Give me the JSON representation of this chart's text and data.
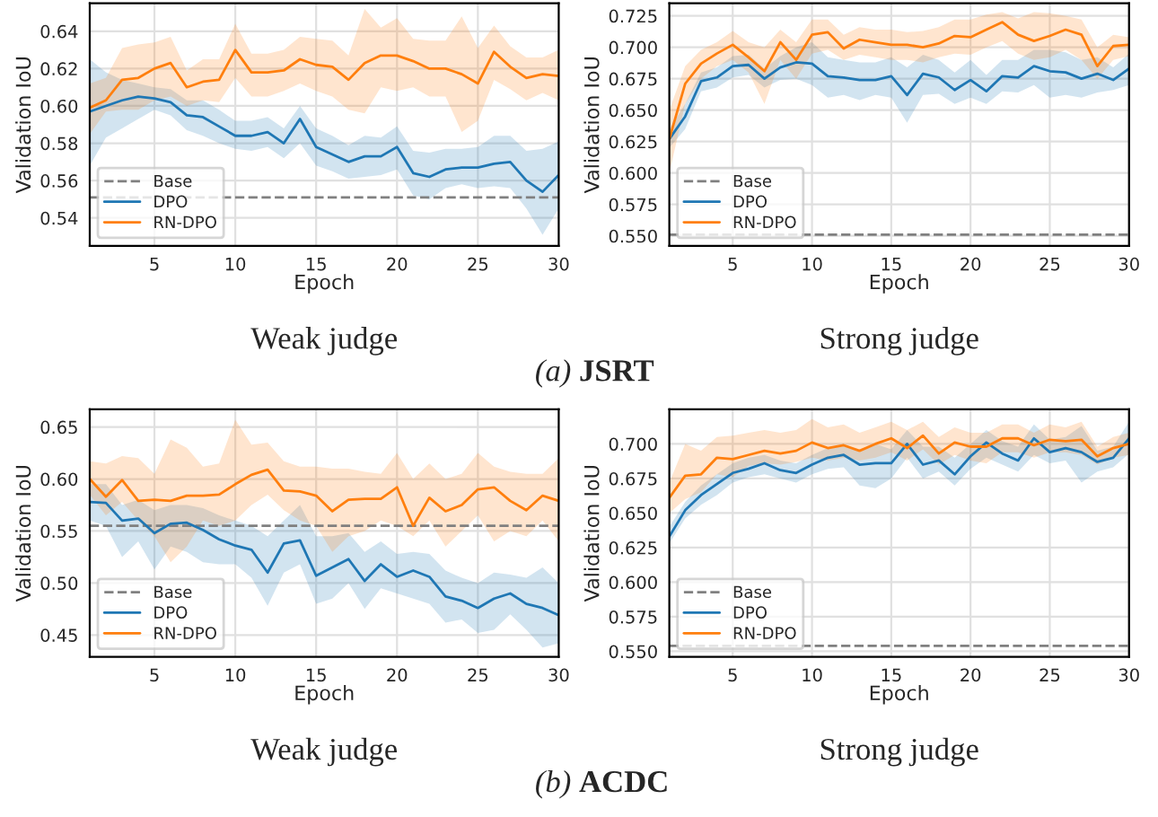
{
  "chart_data": [
    {
      "type": "line",
      "xlabel": "Epoch",
      "ylabel": "Validation IoU",
      "x": [
        1,
        2,
        3,
        4,
        5,
        6,
        7,
        8,
        9,
        10,
        11,
        12,
        13,
        14,
        15,
        16,
        17,
        18,
        19,
        20,
        21,
        22,
        23,
        24,
        25,
        26,
        27,
        28,
        29,
        30
      ],
      "xlim": [
        1,
        30
      ],
      "xticks": [
        5,
        10,
        15,
        20,
        25,
        30
      ],
      "ylim": [
        0.525,
        0.655
      ],
      "yticks": [
        0.54,
        0.56,
        0.58,
        {
          "value": 0.6,
          "label": "0.60"
        },
        0.62,
        0.64
      ],
      "grid": true,
      "legend": "lower left",
      "annotations": [
        "Weak judge",
        "(a) JSRT"
      ],
      "ref_lines": [
        {
          "axis": "y",
          "value": 0.551,
          "label": "Base",
          "color": "#808080",
          "line_style": "dashed"
        }
      ],
      "series": [
        {
          "name": "DPO",
          "color": "#1f77b4",
          "values": [
            0.597,
            0.6,
            0.603,
            0.605,
            0.604,
            0.602,
            0.595,
            0.594,
            0.589,
            0.584,
            0.584,
            0.586,
            0.58,
            0.593,
            0.578,
            0.574,
            0.57,
            0.573,
            0.573,
            0.578,
            0.564,
            0.562,
            0.566,
            0.567,
            0.567,
            0.569,
            0.57,
            0.56,
            0.554,
            0.563
          ],
          "lower": [
            0.568,
            0.583,
            0.588,
            0.593,
            0.598,
            0.595,
            0.587,
            0.584,
            0.58,
            0.577,
            0.576,
            0.578,
            0.572,
            0.58,
            0.568,
            0.565,
            0.561,
            0.562,
            0.563,
            0.566,
            0.552,
            0.55,
            0.556,
            0.558,
            0.556,
            0.557,
            0.556,
            0.545,
            0.531,
            0.545
          ],
          "upper": [
            0.625,
            0.618,
            0.614,
            0.612,
            0.61,
            0.609,
            0.603,
            0.603,
            0.598,
            0.592,
            0.592,
            0.594,
            0.588,
            0.6,
            0.588,
            0.584,
            0.579,
            0.584,
            0.583,
            0.589,
            0.576,
            0.575,
            0.577,
            0.577,
            0.578,
            0.584,
            0.584,
            0.576,
            0.577,
            0.581
          ]
        },
        {
          "name": "RN-DPO",
          "color": "#ff7f0e",
          "values": [
            0.599,
            0.603,
            0.614,
            0.615,
            0.62,
            0.623,
            0.61,
            0.613,
            0.614,
            0.63,
            0.618,
            0.618,
            0.619,
            0.625,
            0.622,
            0.621,
            0.614,
            0.623,
            0.627,
            0.627,
            0.624,
            0.62,
            0.62,
            0.617,
            0.612,
            0.629,
            0.621,
            0.615,
            0.617,
            0.616
          ],
          "lower": [
            0.585,
            0.597,
            0.598,
            0.598,
            0.603,
            0.605,
            0.6,
            0.603,
            0.602,
            0.615,
            0.605,
            0.605,
            0.608,
            0.612,
            0.608,
            0.605,
            0.598,
            0.596,
            0.61,
            0.608,
            0.61,
            0.605,
            0.605,
            0.586,
            0.592,
            0.614,
            0.609,
            0.603,
            0.607,
            0.603
          ],
          "upper": [
            0.612,
            0.615,
            0.631,
            0.633,
            0.634,
            0.637,
            0.619,
            0.625,
            0.625,
            0.644,
            0.628,
            0.628,
            0.63,
            0.637,
            0.636,
            0.635,
            0.627,
            0.652,
            0.642,
            0.647,
            0.636,
            0.635,
            0.635,
            0.648,
            0.631,
            0.643,
            0.632,
            0.626,
            0.626,
            0.63
          ]
        }
      ]
    },
    {
      "type": "line",
      "xlabel": "Epoch",
      "ylabel": "Validation IoU",
      "x": [
        1,
        2,
        3,
        4,
        5,
        6,
        7,
        8,
        9,
        10,
        11,
        12,
        13,
        14,
        15,
        16,
        17,
        18,
        19,
        20,
        21,
        22,
        23,
        24,
        25,
        26,
        27,
        28,
        29,
        30
      ],
      "xlim": [
        1,
        30
      ],
      "xticks": [
        5,
        10,
        15,
        20,
        25,
        30
      ],
      "ylim": [
        0.542,
        0.735
      ],
      "yticks": [
        {
          "value": 0.55,
          "label": "0.550"
        },
        0.575,
        {
          "value": 0.6,
          "label": "0.600"
        },
        0.625,
        {
          "value": 0.65,
          "label": "0.650"
        },
        0.675,
        {
          "value": 0.7,
          "label": "0.700"
        },
        0.725
      ],
      "grid": true,
      "legend": "lower left",
      "annotations": [
        "Strong judge"
      ],
      "ref_lines": [
        {
          "axis": "y",
          "value": 0.551,
          "label": "Base",
          "color": "#808080",
          "line_style": "dashed"
        }
      ],
      "series": [
        {
          "name": "DPO",
          "color": "#1f77b4",
          "values": [
            0.627,
            0.645,
            0.673,
            0.676,
            0.685,
            0.686,
            0.675,
            0.684,
            0.688,
            0.687,
            0.677,
            0.676,
            0.674,
            0.674,
            0.677,
            0.662,
            0.679,
            0.676,
            0.666,
            0.674,
            0.665,
            0.677,
            0.676,
            0.685,
            0.681,
            0.68,
            0.675,
            0.679,
            0.674,
            0.683
          ],
          "lower": [
            0.62,
            0.635,
            0.665,
            0.668,
            0.676,
            0.678,
            0.668,
            0.674,
            0.675,
            0.67,
            0.66,
            0.662,
            0.658,
            0.662,
            0.66,
            0.64,
            0.662,
            0.663,
            0.655,
            0.66,
            0.655,
            0.665,
            0.664,
            0.67,
            0.66,
            0.662,
            0.66,
            0.664,
            0.666,
            0.67
          ],
          "upper": [
            0.635,
            0.655,
            0.68,
            0.684,
            0.693,
            0.694,
            0.683,
            0.693,
            0.7,
            0.704,
            0.692,
            0.69,
            0.688,
            0.688,
            0.692,
            0.684,
            0.694,
            0.69,
            0.68,
            0.69,
            0.678,
            0.69,
            0.69,
            0.698,
            0.698,
            0.696,
            0.69,
            0.692,
            0.684,
            0.695
          ]
        },
        {
          "name": "RN-DPO",
          "color": "#ff7f0e",
          "values": [
            0.627,
            0.671,
            0.687,
            0.695,
            0.702,
            0.692,
            0.681,
            0.704,
            0.69,
            0.71,
            0.712,
            0.699,
            0.706,
            0.704,
            0.702,
            0.702,
            0.7,
            0.703,
            0.709,
            0.708,
            0.714,
            0.72,
            0.71,
            0.705,
            0.709,
            0.714,
            0.71,
            0.685,
            0.701,
            0.702
          ],
          "lower": [
            0.6,
            0.655,
            0.675,
            0.685,
            0.69,
            0.68,
            0.655,
            0.69,
            0.675,
            0.695,
            0.698,
            0.69,
            0.694,
            0.692,
            0.69,
            0.69,
            0.688,
            0.692,
            0.695,
            0.694,
            0.7,
            0.705,
            0.695,
            0.69,
            0.692,
            0.698,
            0.69,
            0.675,
            0.69,
            0.693
          ],
          "upper": [
            0.65,
            0.685,
            0.698,
            0.704,
            0.713,
            0.704,
            0.7,
            0.714,
            0.704,
            0.722,
            0.722,
            0.71,
            0.716,
            0.714,
            0.714,
            0.712,
            0.713,
            0.716,
            0.722,
            0.722,
            0.726,
            0.728,
            0.723,
            0.728,
            0.727,
            0.725,
            0.722,
            0.7,
            0.71,
            0.708
          ]
        }
      ]
    },
    {
      "type": "line",
      "xlabel": "Epoch",
      "ylabel": "Validation IoU",
      "x": [
        1,
        2,
        3,
        4,
        5,
        6,
        7,
        8,
        9,
        10,
        11,
        12,
        13,
        14,
        15,
        16,
        17,
        18,
        19,
        20,
        21,
        22,
        23,
        24,
        25,
        26,
        27,
        28,
        29,
        30
      ],
      "xlim": [
        1,
        30
      ],
      "xticks": [
        5,
        10,
        15,
        20,
        25,
        30
      ],
      "ylim": [
        0.429,
        0.667
      ],
      "yticks": [
        0.45,
        {
          "value": 0.5,
          "label": "0.50"
        },
        0.55,
        {
          "value": 0.6,
          "label": "0.60"
        },
        0.65
      ],
      "grid": true,
      "legend": "lower left",
      "annotations": [
        "Weak judge",
        "(b) ACDC"
      ],
      "ref_lines": [
        {
          "axis": "y",
          "value": 0.555,
          "label": "Base",
          "color": "#808080",
          "line_style": "dashed"
        }
      ],
      "series": [
        {
          "name": "DPO",
          "color": "#1f77b4",
          "values": [
            0.578,
            0.577,
            0.56,
            0.562,
            0.548,
            0.557,
            0.558,
            0.551,
            0.542,
            0.536,
            0.532,
            0.51,
            0.538,
            0.541,
            0.507,
            0.515,
            0.523,
            0.502,
            0.518,
            0.506,
            0.512,
            0.506,
            0.487,
            0.483,
            0.476,
            0.485,
            0.49,
            0.48,
            0.476,
            0.469
          ],
          "lower": [
            0.56,
            0.555,
            0.525,
            0.54,
            0.513,
            0.535,
            0.53,
            0.52,
            0.518,
            0.518,
            0.505,
            0.478,
            0.51,
            0.518,
            0.48,
            0.485,
            0.5,
            0.475,
            0.495,
            0.49,
            0.485,
            0.48,
            0.462,
            0.465,
            0.452,
            0.455,
            0.47,
            0.455,
            0.438,
            0.442
          ],
          "upper": [
            0.595,
            0.595,
            0.575,
            0.58,
            0.57,
            0.575,
            0.575,
            0.572,
            0.565,
            0.56,
            0.555,
            0.545,
            0.56,
            0.575,
            0.545,
            0.545,
            0.548,
            0.53,
            0.54,
            0.528,
            0.53,
            0.528,
            0.512,
            0.505,
            0.5,
            0.51,
            0.508,
            0.505,
            0.515,
            0.5
          ]
        },
        {
          "name": "RN-DPO",
          "color": "#ff7f0e",
          "values": [
            0.6,
            0.583,
            0.599,
            0.579,
            0.58,
            0.579,
            0.584,
            0.584,
            0.585,
            0.595,
            0.604,
            0.609,
            0.589,
            0.588,
            0.584,
            0.569,
            0.58,
            0.581,
            0.581,
            0.592,
            0.555,
            0.582,
            0.569,
            0.575,
            0.59,
            0.592,
            0.579,
            0.57,
            0.584,
            0.579
          ],
          "lower": [
            0.585,
            0.565,
            0.578,
            0.56,
            0.545,
            0.52,
            0.535,
            0.56,
            0.555,
            0.56,
            0.575,
            0.585,
            0.57,
            0.56,
            0.555,
            0.53,
            0.545,
            0.55,
            0.56,
            0.555,
            0.545,
            0.56,
            0.535,
            0.55,
            0.565,
            0.54,
            0.55,
            0.545,
            0.56,
            0.54
          ],
          "upper": [
            0.617,
            0.615,
            0.622,
            0.62,
            0.605,
            0.638,
            0.63,
            0.612,
            0.615,
            0.657,
            0.633,
            0.635,
            0.617,
            0.612,
            0.612,
            0.61,
            0.61,
            0.607,
            0.605,
            0.625,
            0.6,
            0.615,
            0.6,
            0.605,
            0.625,
            0.612,
            0.607,
            0.605,
            0.605,
            0.62
          ]
        }
      ]
    },
    {
      "type": "line",
      "xlabel": "Epoch",
      "ylabel": "Validation IoU",
      "x": [
        1,
        2,
        3,
        4,
        5,
        6,
        7,
        8,
        9,
        10,
        11,
        12,
        13,
        14,
        15,
        16,
        17,
        18,
        19,
        20,
        21,
        22,
        23,
        24,
        25,
        26,
        27,
        28,
        29,
        30
      ],
      "xlim": [
        1,
        30
      ],
      "xticks": [
        5,
        10,
        15,
        20,
        25,
        30
      ],
      "ylim": [
        0.546,
        0.725
      ],
      "yticks": [
        {
          "value": 0.55,
          "label": "0.550"
        },
        0.575,
        {
          "value": 0.6,
          "label": "0.600"
        },
        0.625,
        {
          "value": 0.65,
          "label": "0.650"
        },
        0.675,
        {
          "value": 0.7,
          "label": "0.700"
        }
      ],
      "grid": true,
      "legend": "lower left",
      "annotations": [
        "Strong judge"
      ],
      "ref_lines": [
        {
          "axis": "y",
          "value": 0.554,
          "label": "Base",
          "color": "#808080",
          "line_style": "dashed"
        }
      ],
      "series": [
        {
          "name": "DPO",
          "color": "#1f77b4",
          "values": [
            0.633,
            0.652,
            0.663,
            0.671,
            0.679,
            0.682,
            0.686,
            0.681,
            0.679,
            0.685,
            0.69,
            0.692,
            0.685,
            0.686,
            0.686,
            0.7,
            0.685,
            0.688,
            0.678,
            0.691,
            0.701,
            0.693,
            0.688,
            0.704,
            0.694,
            0.697,
            0.694,
            0.687,
            0.69,
            0.704
          ],
          "lower": [
            0.628,
            0.646,
            0.656,
            0.663,
            0.672,
            0.676,
            0.678,
            0.675,
            0.672,
            0.678,
            0.682,
            0.683,
            0.67,
            0.668,
            0.675,
            0.69,
            0.675,
            0.68,
            0.67,
            0.682,
            0.69,
            0.685,
            0.68,
            0.692,
            0.686,
            0.688,
            0.672,
            0.68,
            0.683,
            0.693
          ],
          "upper": [
            0.64,
            0.658,
            0.67,
            0.678,
            0.686,
            0.69,
            0.692,
            0.688,
            0.686,
            0.692,
            0.697,
            0.7,
            0.694,
            0.7,
            0.696,
            0.71,
            0.698,
            0.698,
            0.69,
            0.7,
            0.71,
            0.702,
            0.698,
            0.714,
            0.703,
            0.705,
            0.713,
            0.695,
            0.698,
            0.716
          ]
        },
        {
          "name": "RN-DPO",
          "color": "#ff7f0e",
          "values": [
            0.661,
            0.677,
            0.678,
            0.69,
            0.689,
            0.692,
            0.695,
            0.693,
            0.695,
            0.701,
            0.697,
            0.699,
            0.695,
            0.7,
            0.704,
            0.697,
            0.706,
            0.693,
            0.701,
            0.698,
            0.698,
            0.704,
            0.704,
            0.699,
            0.703,
            0.702,
            0.703,
            0.691,
            0.697,
            0.7
          ],
          "lower": [
            0.65,
            0.66,
            0.665,
            0.678,
            0.676,
            0.684,
            0.686,
            0.685,
            0.687,
            0.69,
            0.688,
            0.69,
            0.688,
            0.69,
            0.694,
            0.688,
            0.696,
            0.685,
            0.692,
            0.688,
            0.686,
            0.694,
            0.694,
            0.69,
            0.694,
            0.694,
            0.692,
            0.685,
            0.69,
            0.692
          ],
          "upper": [
            0.672,
            0.7,
            0.695,
            0.705,
            0.706,
            0.708,
            0.71,
            0.708,
            0.71,
            0.718,
            0.712,
            0.714,
            0.708,
            0.712,
            0.716,
            0.71,
            0.716,
            0.705,
            0.712,
            0.708,
            0.708,
            0.714,
            0.714,
            0.708,
            0.714,
            0.712,
            0.716,
            0.698,
            0.705,
            0.708
          ]
        }
      ]
    }
  ]
}
